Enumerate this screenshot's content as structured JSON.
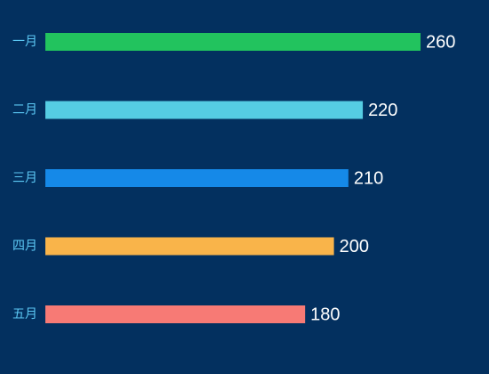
{
  "chart_data": {
    "type": "bar",
    "orientation": "horizontal",
    "categories": [
      "一月",
      "二月",
      "三月",
      "四月",
      "五月"
    ],
    "values": [
      260,
      220,
      210,
      200,
      180
    ],
    "colors": [
      "#22c35e",
      "#55cde3",
      "#1589e8",
      "#f9b44a",
      "#f77a75"
    ],
    "xlim": [
      0,
      260
    ],
    "grid": false,
    "legend": "none",
    "background": "#03305f",
    "label_color": "#5cc9f5",
    "value_label_color": "#ffffff"
  }
}
